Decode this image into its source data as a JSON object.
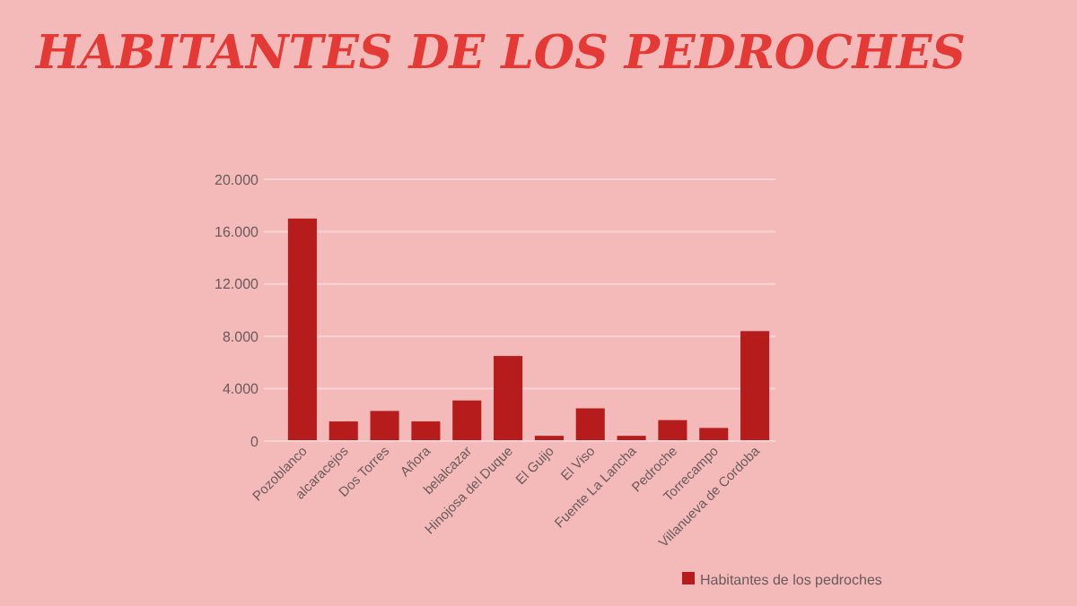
{
  "chart_data": {
    "type": "bar",
    "title": "HABITANTES DE LOS PEDROCHES",
    "categories": [
      "Pozoblanco",
      "alcaracejos",
      "Dos Torres",
      "Añora",
      "belalcazar",
      "Hinojosa del Duque",
      "El Guijo",
      "El Viso",
      "Fuente La Lancha",
      "Pedroche",
      "Torrecampo",
      "Villanueva de Cordoba"
    ],
    "series": [
      {
        "name": "Habitantes de los pedroches",
        "color": "#b71c1c",
        "values": [
          17000,
          1500,
          2300,
          1500,
          3100,
          6500,
          400,
          2500,
          400,
          1600,
          1000,
          8400
        ]
      }
    ],
    "ylim": [
      0,
      20000
    ],
    "yticks": [
      0,
      {
        "value": 4000,
        "label": "4.000"
      },
      {
        "value": 8000,
        "label": "8.000"
      },
      {
        "value": 12000,
        "label": "12.000"
      },
      {
        "value": 16000,
        "label": "16.000"
      },
      {
        "value": 20000,
        "label": "20.000"
      }
    ],
    "grid": "y",
    "legend": "bottom"
  }
}
